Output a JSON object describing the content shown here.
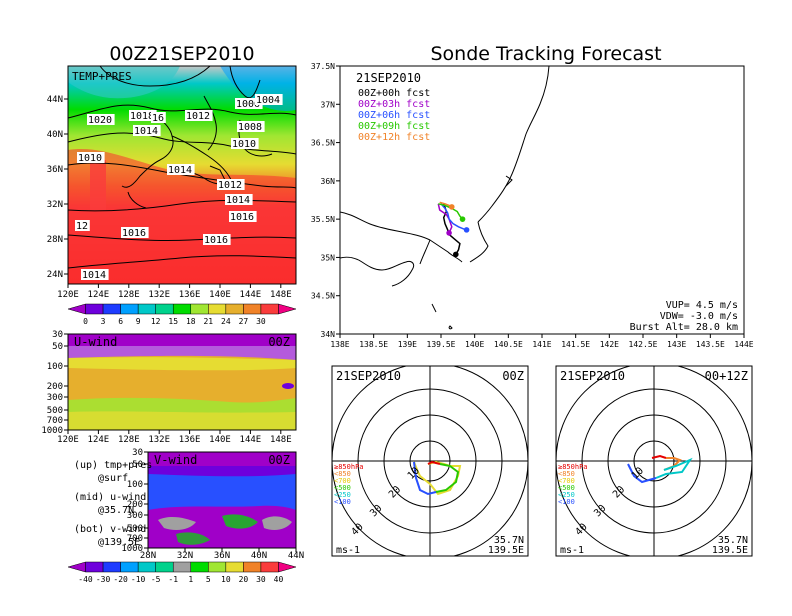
{
  "left_title": "00Z21SEP2010",
  "main_title": "Sonde Tracking Forecast",
  "temp_map": {
    "panel_label": "TEMP+PRES",
    "lon_ticks": [
      "120E",
      "124E",
      "128E",
      "132E",
      "136E",
      "140E",
      "144E",
      "148E"
    ],
    "lat_ticks": [
      "44N",
      "40N",
      "36N",
      "32N",
      "28N",
      "24N"
    ],
    "isobar_labels": [
      "1020",
      "1018",
      "16",
      "1014",
      "1012",
      "1006",
      "1004",
      "1008",
      "1010",
      "1010",
      "1014",
      "1012",
      "1014",
      "1016",
      "12",
      "1016",
      "1016",
      "1014"
    ],
    "colorbar_ticks": [
      "0",
      "3",
      "6",
      "9",
      "12",
      "15",
      "18",
      "21",
      "24",
      "27",
      "30"
    ],
    "colorbar_colors": [
      "#a000c8",
      "#6e00dc",
      "#1e3cff",
      "#00a0ff",
      "#00c8c8",
      "#00d28c",
      "#00dc00",
      "#a0e632",
      "#e6dc32",
      "#e6af2d",
      "#f08228",
      "#fa3c3c",
      "#f00082"
    ]
  },
  "u_wind": {
    "label": "U-wind",
    "time": "00Z",
    "p_ticks": [
      "30",
      "50",
      "100",
      "200",
      "300",
      "500",
      "700",
      "1000"
    ],
    "lon_ticks": [
      "120E",
      "124E",
      "128E",
      "132E",
      "136E",
      "140E",
      "144E",
      "148E"
    ]
  },
  "v_wind": {
    "label": "V-wind",
    "time": "00Z",
    "p_ticks": [
      "30",
      "50",
      "100",
      "200",
      "300",
      "500",
      "700",
      "1000"
    ],
    "lat_ticks": [
      "28N",
      "32N",
      "36N",
      "40N",
      "44N"
    ],
    "colorbar_ticks": [
      "-40",
      "-30",
      "-20",
      "-10",
      "-5",
      "-1",
      "1",
      "5",
      "10",
      "20",
      "30",
      "40"
    ],
    "colorbar_colors": [
      "#a000c8",
      "#6e00dc",
      "#1e3cff",
      "#00a0ff",
      "#00c8c8",
      "#00d28c",
      "#a0a0a0",
      "#00dc00",
      "#a0e632",
      "#e6dc32",
      "#f08228",
      "#fa3c3c",
      "#f00082"
    ]
  },
  "legend_notes": [
    {
      "line1": "(up) tmp+pres",
      "line2": "@surf"
    },
    {
      "line1": "(mid) u-wind",
      "line2": "@35.7N"
    },
    {
      "line1": "(bot) v-wind",
      "line2": "@139.5E"
    }
  ],
  "track_map": {
    "date": "21SEP2010",
    "forecasts": [
      {
        "label": "00Z+00h fcst",
        "color": "#000000"
      },
      {
        "label": "00Z+03h fcst",
        "color": "#a000c8"
      },
      {
        "label": "00Z+06h fcst",
        "color": "#2850ff"
      },
      {
        "label": "00Z+09h fcst",
        "color": "#28c800"
      },
      {
        "label": "00Z+12h fcst",
        "color": "#f08228"
      }
    ],
    "lat_ticks": [
      "37.5N",
      "37N",
      "36.5N",
      "36N",
      "35.5N",
      "35N",
      "34.5N",
      "34N"
    ],
    "lon_ticks": [
      "138E",
      "138.5E",
      "139E",
      "139.5E",
      "140E",
      "140.5E",
      "141E",
      "141.5E",
      "142E",
      "142.5E",
      "143E",
      "143.5E",
      "144E"
    ],
    "vup": "VUP= 4.5 m/s",
    "vdw": "VDW= -3.0 m/s",
    "burst": "Burst Alt= 28.0 km"
  },
  "hodographs": [
    {
      "date": "21SEP2010",
      "time": "00Z",
      "lat": "35.7N",
      "lon": "139.5E",
      "unit": "ms-1",
      "ring_labels": [
        "10",
        "20",
        "30",
        "40"
      ]
    },
    {
      "date": "21SEP2010",
      "time": "00+12Z",
      "lat": "35.7N",
      "lon": "139.5E",
      "unit": "ms-1",
      "ring_labels": [
        "10",
        "20",
        "30",
        "40"
      ]
    }
  ],
  "hodo_legend": [
    {
      "label": "≥850hPa",
      "color": "#e60000"
    },
    {
      "label": "<850",
      "color": "#f08228"
    },
    {
      "label": "<700",
      "color": "#e6c800"
    },
    {
      "label": "<500",
      "color": "#28c800"
    },
    {
      "label": "<250",
      "color": "#00c8c8"
    },
    {
      "label": "<100",
      "color": "#2850ff"
    }
  ],
  "chart_data": {
    "type": "line",
    "title": "Sonde Tracking Forecast",
    "xlim": [
      138,
      144
    ],
    "ylim": [
      34,
      37.5
    ],
    "series": [
      {
        "name": "00Z+00h fcst",
        "x": [
          139.54,
          139.58,
          139.54,
          139.56,
          139.6,
          139.62,
          139.7,
          139.78,
          139.76,
          139.72
        ],
        "y": [
          35.7,
          35.6,
          35.52,
          35.44,
          35.36,
          35.3,
          35.24,
          35.18,
          35.1,
          35.04
        ]
      },
      {
        "name": "00Z+03h fcst",
        "x": [
          139.46,
          139.48,
          139.58,
          139.62,
          139.66,
          139.62
        ],
        "y": [
          35.7,
          35.62,
          35.56,
          35.5,
          35.4,
          35.32
        ]
      },
      {
        "name": "00Z+06h fcst",
        "x": [
          139.5,
          139.56,
          139.6,
          139.62,
          139.68,
          139.76,
          139.84,
          139.88
        ],
        "y": [
          35.7,
          35.64,
          35.58,
          35.5,
          35.44,
          35.4,
          35.37,
          35.36
        ]
      },
      {
        "name": "00Z+09h fcst",
        "x": [
          139.46,
          139.56,
          139.66,
          139.74,
          139.78,
          139.82
        ],
        "y": [
          35.7,
          35.68,
          35.64,
          35.6,
          35.54,
          35.5
        ]
      },
      {
        "name": "00Z+12h fcst",
        "x": [
          139.48,
          139.56,
          139.62,
          139.66
        ],
        "y": [
          35.72,
          35.7,
          35.68,
          35.66
        ]
      }
    ]
  }
}
